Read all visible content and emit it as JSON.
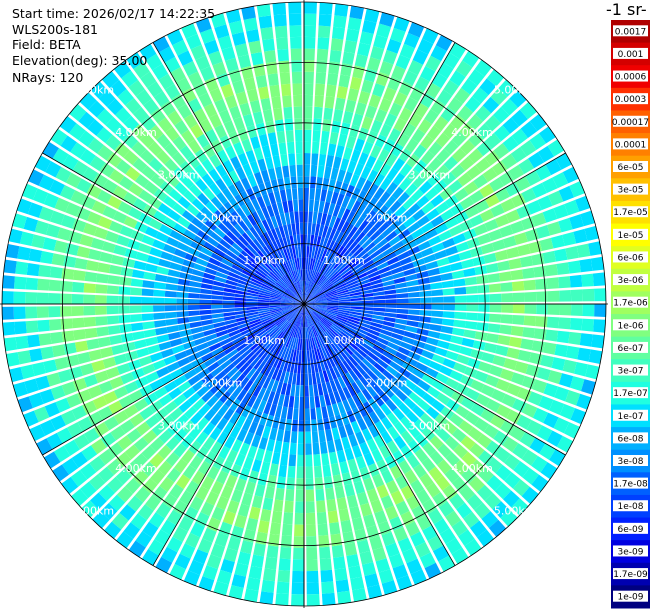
{
  "header": {
    "start_time": "Start time: 2026/02/17 14:22:35",
    "instrument": "WLS200s-181",
    "field": "Field: BETA",
    "elevation": "Elevation(deg): 35.00",
    "nrays": "NRays: 120"
  },
  "colorbar": {
    "title": "-1 sr-",
    "labels": [
      "0.0017",
      "0.001",
      "0.0006",
      "0.0003",
      "0.00017",
      "0.0001",
      "6e-05",
      "3e-05",
      "1.7e-05",
      "1e-05",
      "6e-06",
      "3e-06",
      "1.7e-06",
      "1e-06",
      "6e-07",
      "3e-07",
      "1.7e-07",
      "1e-07",
      "6e-08",
      "3e-08",
      "1.7e-08",
      "1e-08",
      "6e-09",
      "3e-09",
      "1.7e-09",
      "1e-09"
    ],
    "colors": [
      "#b00000",
      "#d40000",
      "#f00000",
      "#ff3000",
      "#ff6000",
      "#ff8000",
      "#ffa000",
      "#ffc000",
      "#ffe000",
      "#ffff00",
      "#e0ff20",
      "#c0ff40",
      "#a0ff60",
      "#80ff80",
      "#60ffa0",
      "#40ffc0",
      "#20ffe0",
      "#00e0ff",
      "#00b0ff",
      "#0090ff",
      "#0060ff",
      "#0040ff",
      "#0020ff",
      "#0000e0",
      "#0000b0",
      "#000080"
    ]
  },
  "chart_data": {
    "type": "heatmap",
    "projection": "polar-ppi",
    "rays": 120,
    "range_rings_km": [
      1.0,
      2.0,
      3.0,
      4.0,
      5.0
    ],
    "ring_labels": [
      "1.00km",
      "2.00km",
      "3.00km",
      "4.00km",
      "5.00km"
    ],
    "max_range_km": 5.0,
    "radial_profile": {
      "range_km": [
        0.0,
        0.5,
        1.0,
        1.5,
        2.0,
        2.5,
        3.0,
        3.5,
        4.0,
        4.5,
        5.0
      ],
      "color_index": [
        21,
        21,
        21,
        20,
        19,
        17,
        15,
        13,
        14,
        16,
        17
      ]
    },
    "colorscale": "jet",
    "grid": true
  }
}
